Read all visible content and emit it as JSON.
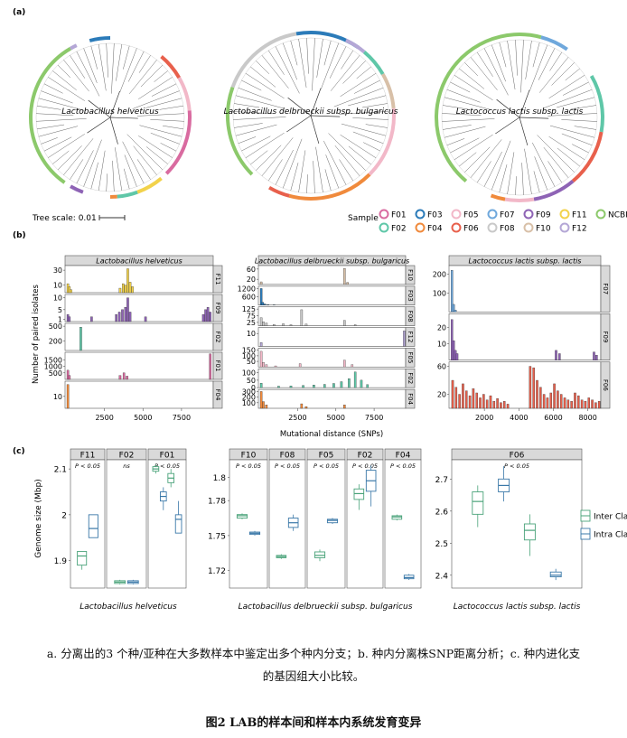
{
  "panel_labels": {
    "a": "(a)",
    "b": "(b)",
    "c": "(c)"
  },
  "panel_a": {
    "species": [
      "Lactobacillus helveticus",
      "Lactobacillus delbrueckii subsp. bulgaricus",
      "Lactococcus lactis subsp. lactis"
    ],
    "tree_scale_label": "Tree scale: 0.01",
    "legend_title": "Sample",
    "legend": [
      {
        "label": "F01",
        "color": "#d96ba0"
      },
      {
        "label": "F02",
        "color": "#5fc7a8"
      },
      {
        "label": "F03",
        "color": "#2b7bb9"
      },
      {
        "label": "F04",
        "color": "#f08a3c"
      },
      {
        "label": "F05",
        "color": "#f2b8c8"
      },
      {
        "label": "F06",
        "color": "#e8604c"
      },
      {
        "label": "F07",
        "color": "#6fa8dc"
      },
      {
        "label": "F08",
        "color": "#c9c9c9"
      },
      {
        "label": "F09",
        "color": "#8e63b5"
      },
      {
        "label": "F10",
        "color": "#d8c0a8"
      },
      {
        "label": "F11",
        "color": "#f2d24b"
      },
      {
        "label": "F12",
        "color": "#b4a7d6"
      },
      {
        "label": "NCBI",
        "color": "#8cc96b"
      }
    ]
  },
  "chart_data": [
    {
      "type": "bar",
      "title": "Lactobacillus helveticus",
      "xlabel": "Mutational distance (SNPs)",
      "ylabel": "Number of paired isolates",
      "x_ticks": [
        "2500",
        "5000",
        "7500"
      ],
      "xlim": [
        0,
        9500
      ],
      "facets": [
        {
          "name": "F11",
          "y_ticks": [
            "10",
            "30"
          ],
          "ymax": 35,
          "color": "#f2d24b",
          "bars": [
            [
              60,
              12
            ],
            [
              160,
              8
            ],
            [
              260,
              4
            ],
            [
              3450,
              6
            ],
            [
              3650,
              12
            ],
            [
              3800,
              10
            ],
            [
              3950,
              32
            ],
            [
              4100,
              14
            ],
            [
              4250,
              8
            ]
          ]
        },
        {
          "name": "F09",
          "y_ticks": [
            "1",
            "5",
            "10"
          ],
          "ymax": 11,
          "color": "#8e63b5",
          "bars": [
            [
              60,
              3
            ],
            [
              160,
              2
            ],
            [
              1600,
              2
            ],
            [
              3200,
              3
            ],
            [
              3400,
              4
            ],
            [
              3600,
              5
            ],
            [
              3800,
              6
            ],
            [
              3950,
              10
            ],
            [
              4100,
              4
            ],
            [
              5100,
              2
            ],
            [
              8850,
              3
            ],
            [
              9000,
              5
            ],
            [
              9150,
              6
            ],
            [
              9300,
              4
            ]
          ]
        },
        {
          "name": "F02",
          "y_ticks": [
            "200",
            "500"
          ],
          "ymax": 540,
          "color": "#5fc7a8",
          "bars": [
            [
              900,
              480
            ]
          ]
        },
        {
          "name": "F01",
          "y_ticks": [
            "500",
            "1000",
            "1500"
          ],
          "ymax": 2000,
          "color": "#d96ba0",
          "bars": [
            [
              60,
              700
            ],
            [
              160,
              300
            ],
            [
              3450,
              300
            ],
            [
              3700,
              500
            ],
            [
              3900,
              250
            ],
            [
              9300,
              1950
            ]
          ]
        },
        {
          "name": "F04",
          "y_ticks": [
            "10"
          ],
          "ymax": 22,
          "color": "#f08a3c",
          "bars": [
            [
              60,
              20
            ]
          ]
        }
      ]
    },
    {
      "type": "bar",
      "title": "Lactobacillus delbrueckii subsp. bulgaricus",
      "xlabel": "Mutational distance (SNPs)",
      "ylabel": "",
      "x_ticks": [
        "2500",
        "5000",
        "7500"
      ],
      "xlim": [
        0,
        9500
      ],
      "facets": [
        {
          "name": "F10",
          "y_ticks": [
            "20",
            "60"
          ],
          "ymax": 70,
          "color": "#d8c0a8",
          "bars": [
            [
              60,
              10
            ],
            [
              5500,
              62
            ],
            [
              5700,
              8
            ]
          ]
        },
        {
          "name": "F03",
          "y_ticks": [
            "600",
            "1200"
          ],
          "ymax": 1300,
          "color": "#2b7bb9",
          "bars": [
            [
              60,
              1200
            ],
            [
              160,
              200
            ],
            [
              300,
              80
            ],
            [
              500,
              40
            ],
            [
              900,
              20
            ]
          ]
        },
        {
          "name": "F08",
          "y_ticks": [
            "25",
            "75",
            "125"
          ],
          "ymax": 135,
          "color": "#c9c9c9",
          "bars": [
            [
              60,
              60
            ],
            [
              200,
              30
            ],
            [
              400,
              20
            ],
            [
              900,
              10
            ],
            [
              1500,
              15
            ],
            [
              2000,
              8
            ],
            [
              2700,
              120
            ],
            [
              3000,
              12
            ],
            [
              5500,
              40
            ],
            [
              6200,
              8
            ]
          ]
        },
        {
          "name": "F12",
          "y_ticks": [
            "10"
          ],
          "ymax": 14,
          "color": "#b4a7d6",
          "bars": [
            [
              60,
              3
            ],
            [
              9400,
              12
            ]
          ]
        },
        {
          "name": "F05",
          "y_ticks": [
            "50",
            "100",
            "150"
          ],
          "ymax": 160,
          "color": "#f2b8c8",
          "bars": [
            [
              60,
              140
            ],
            [
              200,
              40
            ],
            [
              400,
              20
            ],
            [
              1000,
              10
            ],
            [
              2600,
              30
            ],
            [
              5500,
              60
            ],
            [
              6000,
              20
            ]
          ]
        },
        {
          "name": "F02",
          "y_ticks": [
            "0",
            "50",
            "100"
          ],
          "ymax": 120,
          "color": "#5fc7a8",
          "bars": [
            [
              60,
              30
            ],
            [
              1200,
              10
            ],
            [
              2000,
              12
            ],
            [
              2800,
              15
            ],
            [
              3500,
              18
            ],
            [
              4200,
              22
            ],
            [
              4800,
              28
            ],
            [
              5300,
              40
            ],
            [
              5800,
              60
            ],
            [
              6200,
              105
            ],
            [
              6600,
              50
            ],
            [
              7000,
              20
            ]
          ]
        },
        {
          "name": "F04",
          "y_ticks": [
            "100",
            "200",
            "300"
          ],
          "ymax": 320,
          "color": "#f08a3c",
          "bars": [
            [
              60,
              300
            ],
            [
              200,
              120
            ],
            [
              400,
              60
            ],
            [
              2700,
              80
            ],
            [
              3000,
              30
            ],
            [
              5500,
              60
            ]
          ]
        }
      ]
    },
    {
      "type": "bar",
      "title": "Lactococcus lactis subsp. lactis",
      "xlabel": "",
      "ylabel": "",
      "x_ticks": [
        "2000",
        "4000",
        "6000",
        "8000"
      ],
      "xlim": [
        0,
        8700
      ],
      "facets": [
        {
          "name": "F07",
          "y_ticks": [
            "100",
            "200"
          ],
          "ymax": 240,
          "color": "#6fa8dc",
          "bars": [
            [
              60,
              220
            ],
            [
              160,
              40
            ],
            [
              260,
              10
            ]
          ]
        },
        {
          "name": "F09",
          "y_ticks": [
            "10",
            "20"
          ],
          "ymax": 28,
          "color": "#8e63b5",
          "bars": [
            [
              60,
              25
            ],
            [
              160,
              12
            ],
            [
              260,
              6
            ],
            [
              360,
              4
            ],
            [
              6100,
              6
            ],
            [
              6300,
              4
            ],
            [
              8300,
              5
            ],
            [
              8450,
              3
            ]
          ]
        },
        {
          "name": "F06",
          "y_ticks": [
            "20",
            "60"
          ],
          "ymax": 65,
          "color": "#e8604c",
          "bars": [
            [
              100,
              40
            ],
            [
              300,
              30
            ],
            [
              500,
              20
            ],
            [
              700,
              35
            ],
            [
              900,
              25
            ],
            [
              1100,
              18
            ],
            [
              1300,
              28
            ],
            [
              1500,
              22
            ],
            [
              1700,
              15
            ],
            [
              1900,
              20
            ],
            [
              2100,
              12
            ],
            [
              2300,
              18
            ],
            [
              2500,
              10
            ],
            [
              2700,
              14
            ],
            [
              2900,
              8
            ],
            [
              3100,
              10
            ],
            [
              3300,
              6
            ],
            [
              4600,
              60
            ],
            [
              4800,
              58
            ],
            [
              5000,
              40
            ],
            [
              5200,
              30
            ],
            [
              5400,
              20
            ],
            [
              5600,
              15
            ],
            [
              5800,
              22
            ],
            [
              6000,
              35
            ],
            [
              6200,
              25
            ],
            [
              6400,
              20
            ],
            [
              6600,
              15
            ],
            [
              6800,
              12
            ],
            [
              7000,
              10
            ],
            [
              7200,
              22
            ],
            [
              7400,
              18
            ],
            [
              7600,
              12
            ],
            [
              7800,
              10
            ],
            [
              8000,
              15
            ],
            [
              8200,
              12
            ],
            [
              8400,
              8
            ],
            [
              8600,
              10
            ]
          ]
        }
      ]
    },
    {
      "type": "boxplot",
      "title": "Lactobacillus helveticus",
      "ylabel": "Genome size (Mbp)",
      "ylim": [
        1.84,
        2.12
      ],
      "y_ticks": [
        1.9,
        2.0,
        2.1
      ],
      "facets": [
        {
          "name": "F11",
          "pvalue": "P < 0.05",
          "boxes": [
            {
              "group": "Inter Clade",
              "q1": 1.89,
              "med": 1.91,
              "q3": 1.92,
              "lo": 1.88,
              "hi": 1.92
            },
            {
              "group": "Intra Clade",
              "q1": 1.95,
              "med": 1.97,
              "q3": 2.0,
              "lo": 1.95,
              "hi": 2.0
            }
          ]
        },
        {
          "name": "F02",
          "pvalue": "ns",
          "boxes": [
            {
              "group": "Inter Clade",
              "q1": 1.85,
              "med": 1.853,
              "q3": 1.856,
              "lo": 1.848,
              "hi": 1.858
            },
            {
              "group": "Intra Clade",
              "q1": 1.85,
              "med": 1.853,
              "q3": 1.856,
              "lo": 1.848,
              "hi": 1.858
            }
          ]
        },
        {
          "name": "F01",
          "pvalue": "P < 0.05",
          "boxes": [
            {
              "group": "Inter Clade",
              "q1": 2.095,
              "med": 2.1,
              "q3": 2.105,
              "lo": 2.09,
              "hi": 2.11
            },
            {
              "group": "Intra Clade",
              "q1": 2.03,
              "med": 2.04,
              "q3": 2.05,
              "lo": 2.01,
              "hi": 2.06
            },
            {
              "group": "Inter Clade",
              "q1": 2.07,
              "med": 2.08,
              "q3": 2.09,
              "lo": 2.06,
              "hi": 2.1
            },
            {
              "group": "Intra Clade",
              "q1": 1.96,
              "med": 1.99,
              "q3": 2.0,
              "lo": 1.96,
              "hi": 2.03
            }
          ]
        }
      ]
    },
    {
      "type": "boxplot",
      "title": "Lactobacillus delbrueckii subsp. bulgaricus",
      "ylabel": "",
      "ylim": [
        1.705,
        1.815
      ],
      "y_ticks": [
        1.72,
        1.75,
        1.78,
        1.8
      ],
      "facets": [
        {
          "name": "F10",
          "pvalue": "P < 0.05",
          "boxes": [
            {
              "group": "Inter Clade",
              "q1": 1.765,
              "med": 1.767,
              "q3": 1.768,
              "lo": 1.764,
              "hi": 1.769
            },
            {
              "group": "Intra Clade",
              "q1": 1.751,
              "med": 1.752,
              "q3": 1.753,
              "lo": 1.75,
              "hi": 1.754
            }
          ]
        },
        {
          "name": "F08",
          "pvalue": "P < 0.05",
          "boxes": [
            {
              "group": "Inter Clade",
              "q1": 1.731,
              "med": 1.732,
              "q3": 1.733,
              "lo": 1.73,
              "hi": 1.734
            },
            {
              "group": "Intra Clade",
              "q1": 1.757,
              "med": 1.761,
              "q3": 1.765,
              "lo": 1.754,
              "hi": 1.768
            }
          ]
        },
        {
          "name": "F05",
          "pvalue": "P < 0.05",
          "boxes": [
            {
              "group": "Inter Clade",
              "q1": 1.731,
              "med": 1.733,
              "q3": 1.736,
              "lo": 1.728,
              "hi": 1.738
            },
            {
              "group": "Intra Clade",
              "q1": 1.761,
              "med": 1.763,
              "q3": 1.764,
              "lo": 1.76,
              "hi": 1.765
            }
          ]
        },
        {
          "name": "F02",
          "pvalue": "P < 0.05",
          "boxes": [
            {
              "group": "Inter Clade",
              "q1": 1.781,
              "med": 1.786,
              "q3": 1.79,
              "lo": 1.772,
              "hi": 1.794
            },
            {
              "group": "Intra Clade",
              "q1": 1.788,
              "med": 1.797,
              "q3": 1.806,
              "lo": 1.775,
              "hi": 1.81
            }
          ]
        },
        {
          "name": "F04",
          "pvalue": "P < 0.05",
          "boxes": [
            {
              "group": "Inter Clade",
              "q1": 1.764,
              "med": 1.766,
              "q3": 1.767,
              "lo": 1.763,
              "hi": 1.768
            },
            {
              "group": "Intra Clade",
              "q1": 1.713,
              "med": 1.714,
              "q3": 1.716,
              "lo": 1.712,
              "hi": 1.717
            }
          ]
        }
      ]
    },
    {
      "type": "boxplot",
      "title": "Lactococcus lactis subsp. lactis",
      "ylabel": "",
      "ylim": [
        2.36,
        2.76
      ],
      "y_ticks": [
        2.4,
        2.5,
        2.6,
        2.7
      ],
      "facets": [
        {
          "name": "F06",
          "pvalue": "P < 0.05",
          "boxes": [
            {
              "group": "Inter Clade",
              "q1": 2.59,
              "med": 2.63,
              "q3": 2.66,
              "lo": 2.55,
              "hi": 2.68
            },
            {
              "group": "Intra Clade",
              "q1": 2.66,
              "med": 2.68,
              "q3": 2.7,
              "lo": 2.63,
              "hi": 2.74
            },
            {
              "group": "Inter Clade",
              "q1": 2.51,
              "med": 2.54,
              "q3": 2.56,
              "lo": 2.46,
              "hi": 2.59
            },
            {
              "group": "Intra Clade",
              "q1": 2.395,
              "med": 2.4,
              "q3": 2.41,
              "lo": 2.385,
              "hi": 2.42
            }
          ]
        }
      ]
    }
  ],
  "boxplot_legend": [
    {
      "label": "Inter Clade",
      "color": "#4aa37a"
    },
    {
      "label": "Intra Clade",
      "color": "#3a78a8"
    }
  ],
  "caption_line1": "a. 分离出的3 个种/亚种在大多数样本中鉴定出多个种内分支；b. 种内分离株SNP距离分析；c. 种内进化支",
  "caption_line2": "的基因组大小比较。",
  "figure_title": "图2  LAB的样本间和样本内系统发育变异"
}
